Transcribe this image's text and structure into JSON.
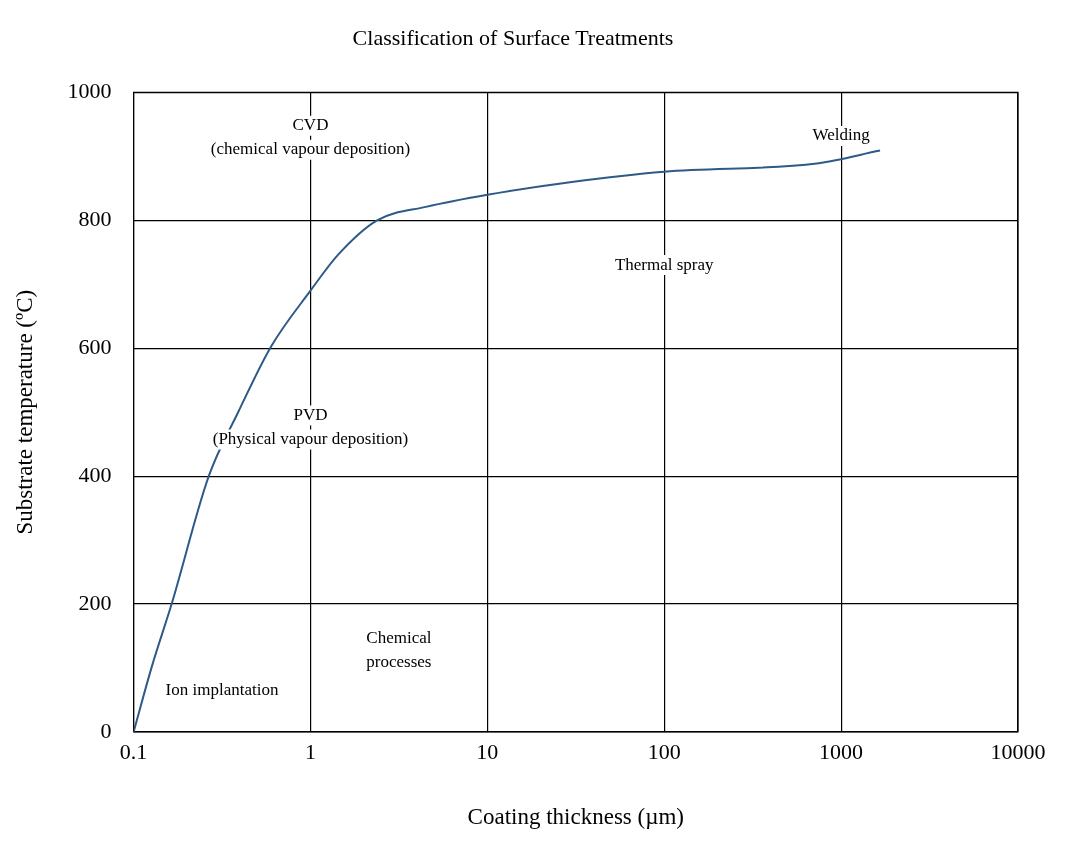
{
  "chart_data": {
    "type": "line",
    "title": "Classification of Surface Treatments",
    "xlabel": "Coating thickness (µm)",
    "ylabel": "Substrate temperature (ºC)",
    "log": "x",
    "xlim": [
      0.1,
      10000
    ],
    "xticks": [
      0.1,
      1,
      10,
      100,
      1000,
      10000
    ],
    "ylim": [
      0,
      1000
    ],
    "yticks": [
      0,
      200,
      400,
      600,
      800,
      1000
    ],
    "grid": true,
    "marker": "none",
    "line_style": "solid",
    "series": [
      {
        "color": "#2e5a87",
        "x": [
          0.1,
          0.127,
          0.164,
          0.266,
          0.39,
          0.6,
          1,
          1.43,
          2.38,
          4.49,
          10,
          30,
          100,
          728,
          1660
        ],
        "values": [
          0,
          103,
          200,
          400,
          500,
          603,
          690,
          746,
          800,
          821,
          840,
          860,
          876,
          889,
          909
        ]
      }
    ],
    "annotations": [
      "CVD\n(chemical vapour deposition)",
      "PVD\n(Physical vapour deposition)",
      "Thermal spray",
      "Welding",
      "Chemical\nprocesses",
      "Ion implantation"
    ]
  }
}
